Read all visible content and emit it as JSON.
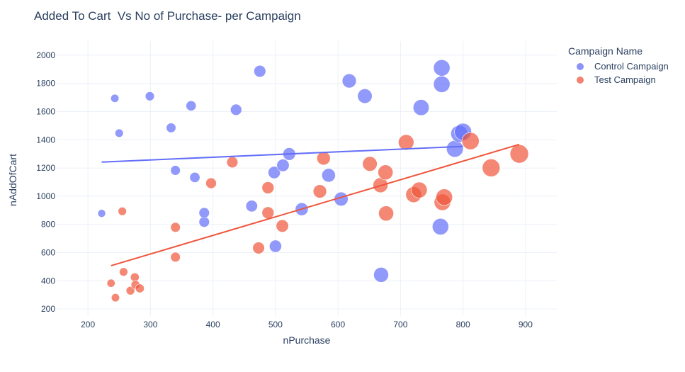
{
  "chart_data": {
    "type": "scatter",
    "title": "Added To Cart  Vs No of Purchase- per Campaign",
    "xlabel": "nPurchase",
    "ylabel": "nAddOfCart",
    "xlim": [
      150,
      950
    ],
    "ylim": [
      150,
      2100
    ],
    "xticks": [
      200,
      300,
      400,
      500,
      600,
      700,
      800,
      900
    ],
    "yticks": [
      200,
      400,
      600,
      800,
      1000,
      1200,
      1400,
      1600,
      1800,
      2000
    ],
    "grid": true,
    "legend": {
      "title": "Campaign Name",
      "placement": "top-right"
    },
    "series": [
      {
        "name": "Control Campaign",
        "color": "#636efa",
        "points": [
          {
            "x": 222,
            "y": 878
          },
          {
            "x": 243,
            "y": 1694
          },
          {
            "x": 250,
            "y": 1447
          },
          {
            "x": 299,
            "y": 1709
          },
          {
            "x": 333,
            "y": 1485
          },
          {
            "x": 340,
            "y": 1183
          },
          {
            "x": 365,
            "y": 1641
          },
          {
            "x": 371,
            "y": 1133
          },
          {
            "x": 386,
            "y": 817
          },
          {
            "x": 386,
            "y": 882
          },
          {
            "x": 437,
            "y": 1613
          },
          {
            "x": 462,
            "y": 930
          },
          {
            "x": 475,
            "y": 1886
          },
          {
            "x": 500,
            "y": 645
          },
          {
            "x": 498,
            "y": 1168
          },
          {
            "x": 512,
            "y": 1219
          },
          {
            "x": 522,
            "y": 1299
          },
          {
            "x": 542,
            "y": 908
          },
          {
            "x": 585,
            "y": 1148
          },
          {
            "x": 605,
            "y": 980
          },
          {
            "x": 618,
            "y": 1818
          },
          {
            "x": 643,
            "y": 1710
          },
          {
            "x": 669,
            "y": 442
          },
          {
            "x": 733,
            "y": 1629
          },
          {
            "x": 764,
            "y": 784
          },
          {
            "x": 766,
            "y": 1910
          },
          {
            "x": 766,
            "y": 1794
          },
          {
            "x": 787,
            "y": 1336
          },
          {
            "x": 794,
            "y": 1443
          },
          {
            "x": 800,
            "y": 1457
          }
        ],
        "trendline": {
          "x": [
            222,
            800
          ],
          "y": [
            1242,
            1353
          ]
        }
      },
      {
        "name": "Test Campaign",
        "color": "#ef553b",
        "points": [
          {
            "x": 237,
            "y": 383
          },
          {
            "x": 244,
            "y": 280
          },
          {
            "x": 255,
            "y": 893
          },
          {
            "x": 257,
            "y": 463
          },
          {
            "x": 268,
            "y": 330
          },
          {
            "x": 275,
            "y": 425
          },
          {
            "x": 276,
            "y": 372
          },
          {
            "x": 283,
            "y": 346
          },
          {
            "x": 340,
            "y": 779
          },
          {
            "x": 340,
            "y": 568
          },
          {
            "x": 397,
            "y": 1092
          },
          {
            "x": 431,
            "y": 1241
          },
          {
            "x": 473,
            "y": 633
          },
          {
            "x": 488,
            "y": 1060
          },
          {
            "x": 488,
            "y": 882
          },
          {
            "x": 511,
            "y": 789
          },
          {
            "x": 571,
            "y": 1034
          },
          {
            "x": 577,
            "y": 1269
          },
          {
            "x": 651,
            "y": 1229
          },
          {
            "x": 668,
            "y": 1078
          },
          {
            "x": 676,
            "y": 1169
          },
          {
            "x": 677,
            "y": 878
          },
          {
            "x": 709,
            "y": 1382
          },
          {
            "x": 721,
            "y": 1011
          },
          {
            "x": 730,
            "y": 1044
          },
          {
            "x": 767,
            "y": 957
          },
          {
            "x": 770,
            "y": 993
          },
          {
            "x": 812,
            "y": 1391
          },
          {
            "x": 845,
            "y": 1201
          },
          {
            "x": 890,
            "y": 1300
          }
        ],
        "trendline": {
          "x": [
            237,
            890
          ],
          "y": [
            507,
            1367
          ]
        }
      }
    ]
  }
}
